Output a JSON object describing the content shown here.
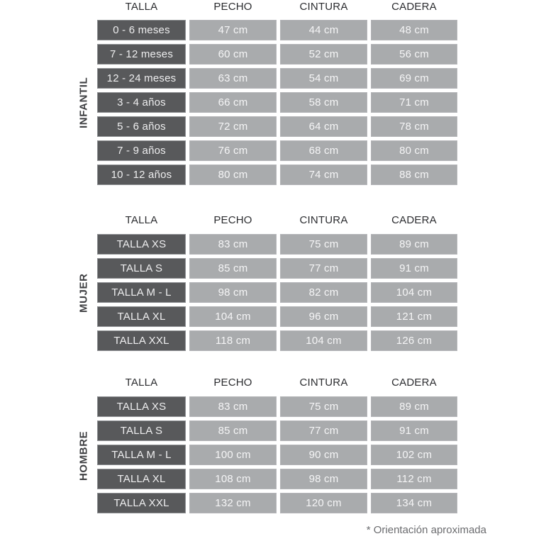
{
  "chart_data": [
    {
      "type": "table",
      "group": "INFANTIL",
      "columns": [
        "TALLA",
        "PECHO",
        "CINTURA",
        "CADERA"
      ],
      "rows": [
        [
          "0 - 6 meses",
          "47 cm",
          "44 cm",
          "48 cm"
        ],
        [
          "7 - 12 meses",
          "60 cm",
          "52 cm",
          "56 cm"
        ],
        [
          "12 - 24 meses",
          "63 cm",
          "54 cm",
          "69 cm"
        ],
        [
          "3 - 4 años",
          "66 cm",
          "58 cm",
          "71 cm"
        ],
        [
          "5 - 6 años",
          "72 cm",
          "64 cm",
          "78 cm"
        ],
        [
          "7 - 9 años",
          "76 cm",
          "68 cm",
          "80 cm"
        ],
        [
          "10 - 12 años",
          "80 cm",
          "74 cm",
          "88 cm"
        ]
      ]
    },
    {
      "type": "table",
      "group": "MUJER",
      "columns": [
        "TALLA",
        "PECHO",
        "CINTURA",
        "CADERA"
      ],
      "rows": [
        [
          "TALLA XS",
          "83 cm",
          "75 cm",
          "89 cm"
        ],
        [
          "TALLA S",
          "85 cm",
          "77 cm",
          "91 cm"
        ],
        [
          "TALLA M - L",
          "98 cm",
          "82 cm",
          "104 cm"
        ],
        [
          "TALLA XL",
          "104 cm",
          "96 cm",
          "121 cm"
        ],
        [
          "TALLA XXL",
          "118 cm",
          "104 cm",
          "126 cm"
        ]
      ]
    },
    {
      "type": "table",
      "group": "HOMBRE",
      "columns": [
        "TALLA",
        "PECHO",
        "CINTURA",
        "CADERA"
      ],
      "rows": [
        [
          "TALLA XS",
          "83 cm",
          "75 cm",
          "89 cm"
        ],
        [
          "TALLA S",
          "85 cm",
          "77 cm",
          "91 cm"
        ],
        [
          "TALLA M - L",
          "100 cm",
          "90 cm",
          "102 cm"
        ],
        [
          "TALLA XL",
          "108 cm",
          "98 cm",
          "112 cm"
        ],
        [
          "TALLA XXL",
          "132 cm",
          "120 cm",
          "134 cm"
        ]
      ]
    }
  ],
  "footnote": "* Orientación aproximada",
  "colors": {
    "dark_cell": "#58595b",
    "light_cell": "#a9abad",
    "header_text": "#2c2d30",
    "section_label_text": "#3e3f42",
    "cell_text": "#f5f5f6",
    "footnote_text": "#6b6c6f",
    "background": "#ffffff"
  }
}
